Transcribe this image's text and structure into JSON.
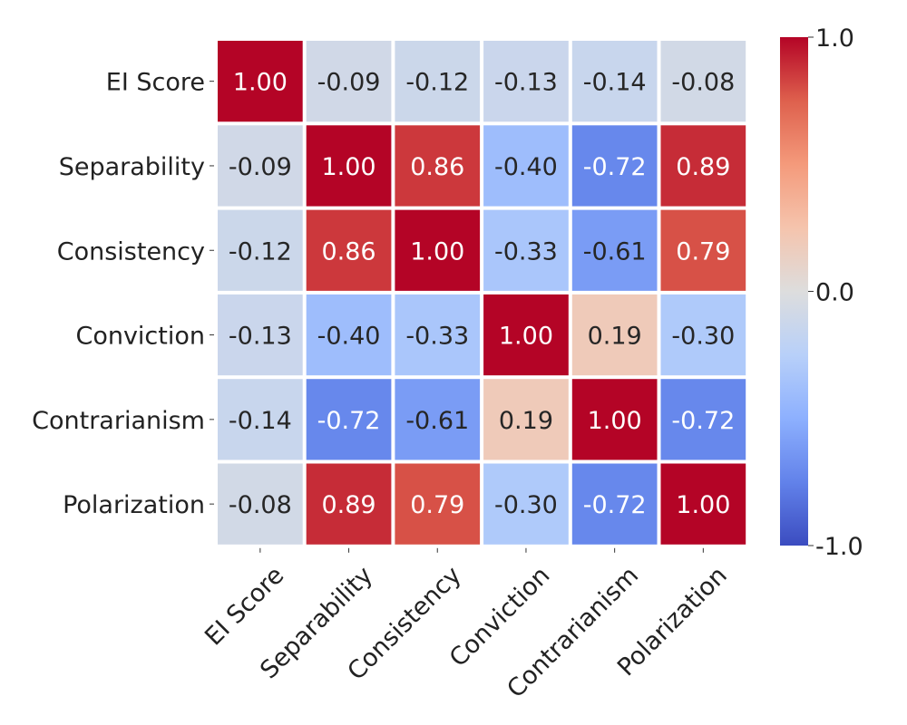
{
  "chart_data": {
    "type": "heatmap",
    "title": "",
    "xlabel": "",
    "ylabel": "",
    "row_labels": [
      "EI Score",
      "Separability",
      "Consistency",
      "Conviction",
      "Contrarianism",
      "Polarization"
    ],
    "col_labels": [
      "EI Score",
      "Separability",
      "Consistency",
      "Conviction",
      "Contrarianism",
      "Polarization"
    ],
    "matrix": [
      [
        1.0,
        -0.09,
        -0.12,
        -0.13,
        -0.14,
        -0.08
      ],
      [
        -0.09,
        1.0,
        0.86,
        -0.4,
        -0.72,
        0.89
      ],
      [
        -0.12,
        0.86,
        1.0,
        -0.33,
        -0.61,
        0.79
      ],
      [
        -0.13,
        -0.4,
        -0.33,
        1.0,
        0.19,
        -0.3
      ],
      [
        -0.14,
        -0.72,
        -0.61,
        0.19,
        1.0,
        -0.72
      ],
      [
        -0.08,
        0.89,
        0.79,
        -0.3,
        -0.72,
        1.0
      ]
    ],
    "value_format": "0.00",
    "colormap": "coolwarm",
    "colorbar": {
      "range": [
        -1.0,
        1.0
      ],
      "ticks": [
        -1.0,
        0.0,
        1.0
      ],
      "tick_labels": [
        "-1.0",
        "0.0",
        "1.0"
      ],
      "placement": "right"
    },
    "colors": {
      "low": "#3b4cc0",
      "mid": "#dddddd",
      "high": "#b40426",
      "cell_border": "#ffffff",
      "text_dark": "#262626",
      "text_light": "#ffffff"
    }
  }
}
